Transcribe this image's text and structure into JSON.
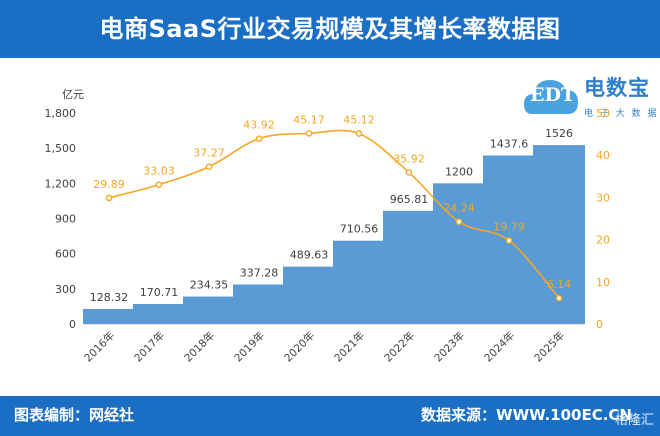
{
  "header": {
    "title": "电商SaaS行业交易规模及其增长率数据图"
  },
  "footer": {
    "left": "图表编制：网经社",
    "right": "数据来源：WWW.100EC.CN"
  },
  "watermark": "格隆汇",
  "logo": {
    "name": "电数宝",
    "sub": "电 子 大 数 据 库",
    "mark": "EDT"
  },
  "colors": {
    "header": "#1a6fc4",
    "bar": "#5b9bd5",
    "line": "#f5a623",
    "axis": "#595959"
  },
  "chart_data": {
    "type": "bar",
    "categories": [
      "2016年",
      "2017年",
      "2018年",
      "2019年",
      "2020年",
      "2021年",
      "2022年",
      "2023年",
      "2024年",
      "2025年"
    ],
    "ylabel": "亿元",
    "ylim": [
      0,
      1800
    ],
    "yticks": [
      "0",
      "300",
      "600",
      "900",
      "1,200",
      "1,500",
      "1,800"
    ],
    "y2lim": [
      0,
      50
    ],
    "y2ticks": [
      "0",
      "10",
      "20",
      "30",
      "40",
      "50"
    ],
    "series": [
      {
        "kind": "bar",
        "values": [
          128.32,
          170.71,
          234.35,
          337.28,
          489.63,
          710.56,
          965.81,
          1200,
          1437.6,
          1526
        ],
        "labels": [
          "128.32",
          "170.71",
          "234.35",
          "337.28",
          "489.63",
          "710.56",
          "965.81",
          "1200",
          "1437.6",
          "1526"
        ]
      },
      {
        "kind": "line",
        "axis": "right",
        "values": [
          29.89,
          33.03,
          37.27,
          43.92,
          45.17,
          45.12,
          35.92,
          24.24,
          19.79,
          6.14
        ],
        "labels": [
          "29.89",
          "33.03",
          "37.27",
          "43.92",
          "45.17",
          "45.12",
          "35.92",
          "24.24",
          "19.79",
          "6.14"
        ]
      }
    ],
    "grid": false,
    "legend": "none"
  }
}
